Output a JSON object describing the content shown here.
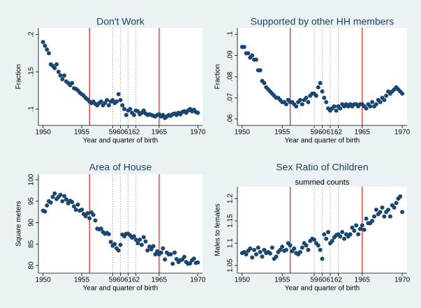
{
  "chart_data": [
    {
      "type": "scatter",
      "title": "Don't Work",
      "x_label": "Year and quarter of birth",
      "y_label": "Fraction",
      "color": "#1a476f",
      "x": [
        1950,
        1950.25,
        1950.5,
        1950.75,
        1951,
        1951.25,
        1951.5,
        1951.75,
        1952,
        1952.25,
        1952.5,
        1952.75,
        1953,
        1953.25,
        1953.5,
        1953.75,
        1954,
        1954.25,
        1954.5,
        1954.75,
        1955,
        1955.25,
        1955.5,
        1955.75,
        1956,
        1956.25,
        1956.5,
        1956.75,
        1957,
        1957.25,
        1957.5,
        1957.75,
        1958,
        1958.25,
        1958.5,
        1958.75,
        1959,
        1959.25,
        1959.5,
        1959.75,
        1960,
        1960.25,
        1960.5,
        1960.75,
        1961,
        1961.25,
        1961.5,
        1961.75,
        1962,
        1962.25,
        1962.5,
        1962.75,
        1963,
        1963.25,
        1963.5,
        1963.75,
        1964,
        1964.25,
        1964.5,
        1964.75,
        1965,
        1965.25,
        1965.5,
        1965.75,
        1966,
        1966.25,
        1966.5,
        1966.75,
        1967,
        1967.25,
        1967.5,
        1967.75,
        1968,
        1968.25,
        1968.5,
        1968.75,
        1969,
        1969.25,
        1969.5,
        1969.75,
        1970
      ],
      "values": [
        0.19,
        0.185,
        0.18,
        0.175,
        0.16,
        0.158,
        0.155,
        0.16,
        0.15,
        0.145,
        0.14,
        0.145,
        0.137,
        0.135,
        0.132,
        0.135,
        0.128,
        0.127,
        0.125,
        0.122,
        0.12,
        0.118,
        0.115,
        0.113,
        0.11,
        0.108,
        0.11,
        0.107,
        0.105,
        0.108,
        0.11,
        0.105,
        0.108,
        0.112,
        0.105,
        0.11,
        0.112,
        0.108,
        0.11,
        0.12,
        0.112,
        0.105,
        0.1,
        0.092,
        0.098,
        0.1,
        0.095,
        0.092,
        0.098,
        0.097,
        0.093,
        0.095,
        0.098,
        0.094,
        0.092,
        0.093,
        0.092,
        0.091,
        0.09,
        0.092,
        0.093,
        0.09,
        0.092,
        0.088,
        0.09,
        0.092,
        0.091,
        0.093,
        0.094,
        0.092,
        0.095,
        0.093,
        0.096,
        0.097,
        0.095,
        0.098,
        0.1,
        0.097,
        0.099,
        0.096,
        0.095
      ],
      "xlim": [
        1949.4,
        1970.6
      ],
      "xticks": [
        1950,
        1955,
        {
          "value": 1959,
          "label": "59"
        },
        {
          "value": 1960,
          "label": "60"
        },
        {
          "value": 1961,
          "label": "61"
        },
        {
          "value": 1962,
          "label": "62"
        },
        1965,
        1970
      ],
      "ylim": [
        0.078,
        0.209
      ],
      "yticks": [
        {
          "value": 0.1,
          "label": ".1"
        },
        {
          "value": 0.15,
          "label": ".15"
        },
        {
          "value": 0.2,
          "label": ".2"
        }
      ],
      "red_lines": [
        1956,
        1965
      ],
      "dotted_lines": [
        1959,
        1960,
        1961,
        1962
      ]
    },
    {
      "type": "scatter",
      "title": "Supported by other HH members",
      "x_label": "Year and quarter of birth",
      "y_label": "Fraction",
      "color": "#1a476f",
      "x": [
        1950,
        1950.25,
        1950.5,
        1950.75,
        1951,
        1951.25,
        1951.5,
        1951.75,
        1952,
        1952.25,
        1952.5,
        1952.75,
        1953,
        1953.25,
        1953.5,
        1953.75,
        1954,
        1954.25,
        1954.5,
        1954.75,
        1955,
        1955.25,
        1955.5,
        1955.75,
        1956,
        1956.25,
        1956.5,
        1956.75,
        1957,
        1957.25,
        1957.5,
        1957.75,
        1958,
        1958.25,
        1958.5,
        1958.75,
        1959,
        1959.25,
        1959.5,
        1959.75,
        1960,
        1960.25,
        1960.5,
        1960.75,
        1961,
        1961.25,
        1961.5,
        1961.75,
        1962,
        1962.25,
        1962.5,
        1962.75,
        1963,
        1963.25,
        1963.5,
        1963.75,
        1964,
        1964.25,
        1964.5,
        1964.75,
        1965,
        1965.25,
        1965.5,
        1965.75,
        1966,
        1966.25,
        1966.5,
        1966.75,
        1967,
        1967.25,
        1967.5,
        1967.75,
        1968,
        1968.25,
        1968.5,
        1968.75,
        1969,
        1969.25,
        1969.5,
        1969.75,
        1970
      ],
      "values": [
        0.094,
        0.094,
        0.091,
        0.091,
        0.089,
        0.09,
        0.088,
        0.088,
        0.083,
        0.083,
        0.078,
        0.077,
        0.075,
        0.074,
        0.073,
        0.072,
        0.071,
        0.07,
        0.07,
        0.069,
        0.068,
        0.068,
        0.067,
        0.069,
        0.068,
        0.068,
        0.067,
        0.066,
        0.068,
        0.069,
        0.067,
        0.069,
        0.07,
        0.068,
        0.071,
        0.072,
        0.072,
        0.071,
        0.075,
        0.077,
        0.073,
        0.07,
        0.068,
        0.065,
        0.064,
        0.065,
        0.066,
        0.064,
        0.066,
        0.065,
        0.067,
        0.066,
        0.067,
        0.066,
        0.067,
        0.066,
        0.067,
        0.067,
        0.066,
        0.067,
        0.067,
        0.066,
        0.065,
        0.067,
        0.066,
        0.068,
        0.066,
        0.067,
        0.069,
        0.068,
        0.07,
        0.069,
        0.071,
        0.073,
        0.072,
        0.073,
        0.074,
        0.075,
        0.074,
        0.073,
        0.072
      ],
      "xlim": [
        1949.4,
        1970.6
      ],
      "xticks": [
        1950,
        1955,
        {
          "value": 1959,
          "label": "59"
        },
        {
          "value": 1960,
          "label": "60"
        },
        {
          "value": 1961,
          "label": "61"
        },
        {
          "value": 1962,
          "label": "62"
        },
        1965,
        1970
      ],
      "ylim": [
        0.057,
        0.103
      ],
      "yticks": [
        {
          "value": 0.06,
          "label": ".06"
        },
        {
          "value": 0.07,
          "label": ".07"
        },
        {
          "value": 0.08,
          "label": ".08"
        },
        {
          "value": 0.09,
          "label": ".09"
        },
        {
          "value": 0.1,
          "label": ".1"
        }
      ],
      "red_lines": [
        1956,
        1965
      ],
      "dotted_lines": [
        1959,
        1960,
        1961,
        1962
      ]
    },
    {
      "type": "scatter",
      "title": "Area of House",
      "x_label": "Year and quarter of birth",
      "y_label": "Square meters",
      "color": "#1a476f",
      "x": [
        1950,
        1950.25,
        1950.5,
        1950.75,
        1951,
        1951.25,
        1951.5,
        1951.75,
        1952,
        1952.25,
        1952.5,
        1952.75,
        1953,
        1953.25,
        1953.5,
        1953.75,
        1954,
        1954.25,
        1954.5,
        1954.75,
        1955,
        1955.25,
        1955.5,
        1955.75,
        1956,
        1956.25,
        1956.5,
        1956.75,
        1957,
        1957.25,
        1957.5,
        1957.75,
        1958,
        1958.25,
        1958.5,
        1958.75,
        1959,
        1959.25,
        1959.5,
        1959.75,
        1960,
        1960.25,
        1960.5,
        1960.75,
        1961,
        1961.25,
        1961.5,
        1961.75,
        1962,
        1962.25,
        1962.5,
        1962.75,
        1963,
        1963.25,
        1963.5,
        1963.75,
        1964,
        1964.25,
        1964.5,
        1964.75,
        1965,
        1965.25,
        1965.5,
        1965.75,
        1966,
        1966.25,
        1966.5,
        1966.75,
        1967,
        1967.25,
        1967.5,
        1967.75,
        1968,
        1968.25,
        1968.5,
        1968.75,
        1969,
        1969.25,
        1969.5,
        1969.75,
        1970
      ],
      "values": [
        92.8,
        92.6,
        94,
        95,
        94.7,
        96,
        96.8,
        95.5,
        96,
        96.5,
        95,
        96.2,
        95.4,
        94.5,
        95.1,
        94.8,
        93.8,
        93,
        94.2,
        92.8,
        93,
        92,
        91.5,
        92.2,
        91,
        92.4,
        91.8,
        90.5,
        88.6,
        88.4,
        88.6,
        87.8,
        87.4,
        87.6,
        87.3,
        85.5,
        84.6,
        85,
        84,
        83.5,
        84.8,
        87.2,
        86.8,
        87.4,
        87.4,
        87,
        86.5,
        86.8,
        86,
        85.2,
        86,
        84.8,
        86.6,
        85.6,
        83.5,
        84.4,
        83.8,
        84.5,
        82.6,
        83.3,
        82.6,
        83,
        84,
        81.4,
        83,
        82.6,
        82.6,
        80.4,
        83,
        81.5,
        80.8,
        81.2,
        81.4,
        82,
        80.8,
        80.4,
        80.5,
        81.2,
        81.6,
        80.6,
        80.7
      ],
      "xlim": [
        1949.4,
        1970.6
      ],
      "xticks": [
        1950,
        1955,
        {
          "value": 1959,
          "label": "59"
        },
        {
          "value": 1960,
          "label": "60"
        },
        {
          "value": 1961,
          "label": "61"
        },
        {
          "value": 1962,
          "label": "62"
        },
        1965,
        1970
      ],
      "ylim": [
        78.2,
        101.3
      ],
      "yticks": [
        80,
        85,
        90,
        95,
        100
      ],
      "red_lines": [
        1956,
        1965
      ],
      "dotted_lines": [
        1959,
        1960,
        1961,
        1962
      ]
    },
    {
      "type": "scatter",
      "title": "Sex Ratio of Children",
      "subtitle": "summed counts",
      "x_label": "Year and quarter of birth",
      "y_label": "Males to females",
      "color": "#1a476f",
      "x": [
        1950,
        1950.25,
        1950.5,
        1950.75,
        1951,
        1951.25,
        1951.5,
        1951.75,
        1952,
        1952.25,
        1952.5,
        1952.75,
        1953,
        1953.25,
        1953.5,
        1953.75,
        1954,
        1954.25,
        1954.5,
        1954.75,
        1955,
        1955.25,
        1955.5,
        1955.75,
        1956,
        1956.25,
        1956.5,
        1956.75,
        1957,
        1957.25,
        1957.5,
        1957.75,
        1958,
        1958.25,
        1958.5,
        1958.75,
        1959,
        1959.25,
        1959.5,
        1959.75,
        1960,
        1960.25,
        1960.5,
        1960.75,
        1961,
        1961.25,
        1961.5,
        1961.75,
        1962,
        1962.25,
        1962.5,
        1962.75,
        1963,
        1963.25,
        1963.5,
        1963.75,
        1964,
        1964.25,
        1964.5,
        1964.75,
        1965,
        1965.25,
        1965.5,
        1965.75,
        1966,
        1966.25,
        1966.5,
        1966.75,
        1967,
        1967.25,
        1967.5,
        1967.75,
        1968,
        1968.25,
        1968.5,
        1968.75,
        1969,
        1969.25,
        1969.5,
        1969.75,
        1970
      ],
      "values": [
        1.078,
        1.08,
        1.075,
        1.083,
        1.088,
        1.068,
        1.085,
        1.075,
        1.09,
        1.08,
        1.07,
        1.085,
        1.078,
        1.08,
        1.077,
        1.09,
        1.065,
        1.07,
        1.08,
        1.085,
        1.092,
        1.083,
        1.085,
        1.1,
        1.095,
        1.082,
        1.088,
        1.078,
        1.075,
        1.08,
        1.09,
        1.1,
        1.095,
        1.085,
        1.105,
        1.11,
        1.108,
        1.1,
        1.095,
        1.085,
        1.065,
        1.12,
        1.11,
        1.125,
        1.1,
        1.105,
        1.113,
        1.118,
        1.12,
        1.115,
        1.125,
        1.11,
        1.12,
        1.115,
        1.12,
        1.135,
        1.128,
        1.14,
        1.12,
        1.132,
        1.14,
        1.13,
        1.155,
        1.145,
        1.145,
        1.15,
        1.16,
        1.175,
        1.165,
        1.17,
        1.18,
        1.16,
        1.17,
        1.175,
        1.16,
        1.185,
        1.18,
        1.19,
        1.2,
        1.205,
        1.17
      ],
      "xlim": [
        1949.4,
        1970.6
      ],
      "xticks": [
        1950,
        1955,
        {
          "value": 1959,
          "label": "59"
        },
        {
          "value": 1960,
          "label": "60"
        },
        {
          "value": 1961,
          "label": "61"
        },
        {
          "value": 1962,
          "label": "62"
        },
        1965,
        1970
      ],
      "ylim": [
        1.0328,
        1.2266
      ],
      "yticks": [
        1.05,
        1.1,
        1.15,
        1.2
      ],
      "red_lines": [
        1956,
        1965
      ],
      "dotted_lines": [
        1959,
        1960,
        1961,
        1962
      ]
    }
  ]
}
